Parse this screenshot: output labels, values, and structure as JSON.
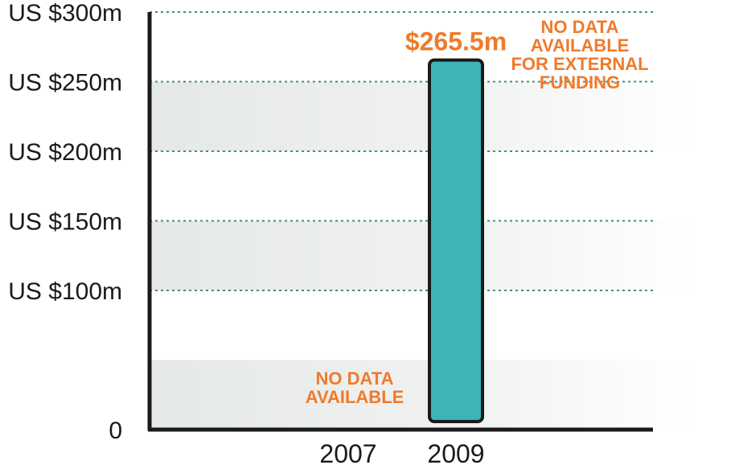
{
  "chart_data": {
    "type": "bar",
    "categories": [
      "2007",
      "2009"
    ],
    "values": [
      null,
      265.5
    ],
    "value_labels": [
      "",
      "$265.5m"
    ],
    "y_ticks": [
      {
        "value": 0,
        "label": "0"
      },
      {
        "value": 100,
        "label": "US $100m"
      },
      {
        "value": 150,
        "label": "US $150m"
      },
      {
        "value": 200,
        "label": "US $200m"
      },
      {
        "value": 250,
        "label": "US $250m"
      },
      {
        "value": 300,
        "label": "US $300m"
      }
    ],
    "ylim": [
      0,
      300
    ],
    "grid": true,
    "annotations": [
      {
        "category": "2007",
        "lines": [
          "NO DATA",
          "AVAILABLE"
        ]
      },
      {
        "category": "external",
        "lines": [
          "NO DATA",
          "AVAILABLE",
          "FOR EXTERNAL",
          "FUNDING"
        ]
      }
    ],
    "colors": {
      "bar_fill": "#3db5b8",
      "bar_stroke": "#1a1a1a",
      "accent": "#f07a2a",
      "grid": "#4a8a80",
      "axis": "#1a1a1a",
      "band": "#e4e8e6"
    }
  }
}
